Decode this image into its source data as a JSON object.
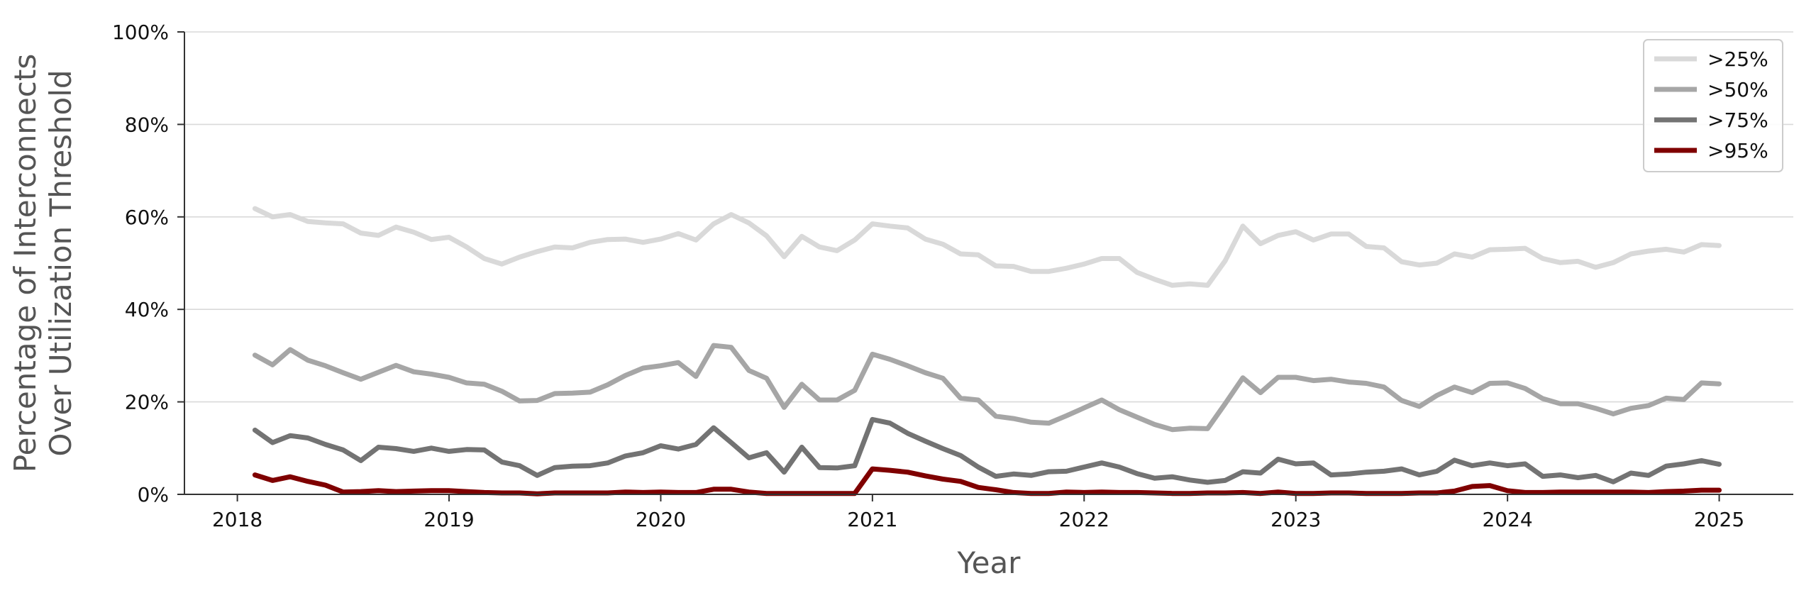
{
  "chart_data": {
    "type": "line",
    "xlabel": "Year",
    "ylabel": "Percentage of Interconnects\nOver Utilization Threshold",
    "xlim": [
      2017.75,
      2025.35
    ],
    "ylim": [
      0,
      100
    ],
    "x_ticks": [
      2018,
      2019,
      2020,
      2021,
      2022,
      2023,
      2024,
      2025
    ],
    "x_tick_labels": [
      "2018",
      "2019",
      "2020",
      "2021",
      "2022",
      "2023",
      "2024",
      "2025"
    ],
    "y_ticks": [
      0,
      20,
      40,
      60,
      80,
      100
    ],
    "y_tick_labels": [
      "0%",
      "20%",
      "40%",
      "60%",
      "80%",
      "100%"
    ],
    "grid": "horizontal",
    "legend_position": "top-right",
    "x_start": 2018.083,
    "x_step": 0.0833333,
    "series": [
      {
        "name": ">25%",
        "color": "#d9d9d9",
        "values": [
          61.8,
          60.0,
          60.5,
          59.0,
          58.7,
          58.5,
          56.5,
          56.0,
          57.8,
          56.7,
          55.1,
          55.6,
          53.5,
          51.0,
          49.8,
          51.3,
          52.5,
          53.5,
          53.3,
          54.5,
          55.1,
          55.2,
          54.5,
          55.2,
          56.4,
          55.0,
          58.5,
          60.5,
          58.7,
          55.9,
          51.4,
          55.8,
          53.5,
          52.7,
          55.0,
          58.5,
          58.0,
          57.6,
          55.2,
          54.1,
          52.0,
          51.8,
          49.4,
          49.3,
          48.2,
          48.2,
          48.9,
          49.8,
          51.0,
          51.0,
          48.0,
          46.5,
          45.2,
          45.5,
          45.2,
          50.5,
          58.0,
          54.2,
          56.0,
          56.8,
          55.0,
          56.3,
          56.3,
          53.6,
          53.3,
          50.3,
          49.6,
          50.0,
          52.0,
          51.3,
          52.9,
          53.0,
          53.2,
          51.0,
          50.1,
          50.4,
          49.1,
          50.1,
          52.0,
          52.6,
          53.0,
          52.4,
          54.0,
          53.8
        ]
      },
      {
        "name": ">50%",
        "color": "#a6a6a6",
        "values": [
          30.1,
          28.0,
          31.3,
          29.0,
          27.8,
          26.3,
          24.9,
          26.4,
          27.9,
          26.5,
          26.0,
          25.3,
          24.1,
          23.8,
          22.3,
          20.2,
          20.3,
          21.8,
          21.9,
          22.1,
          23.7,
          25.7,
          27.3,
          27.8,
          28.5,
          25.5,
          32.2,
          31.8,
          26.8,
          25.1,
          18.8,
          23.8,
          20.4,
          20.4,
          22.5,
          30.3,
          29.2,
          27.8,
          26.3,
          25.1,
          20.8,
          20.4,
          16.9,
          16.4,
          15.6,
          15.4,
          17.0,
          18.7,
          20.4,
          18.3,
          16.7,
          15.1,
          14.0,
          14.3,
          14.2,
          19.6,
          25.2,
          22.0,
          25.3,
          25.3,
          24.6,
          24.9,
          24.3,
          24.0,
          23.2,
          20.3,
          19.0,
          21.4,
          23.2,
          22.0,
          24.0,
          24.1,
          22.9,
          20.7,
          19.6,
          19.6,
          18.6,
          17.4,
          18.6,
          19.2,
          20.8,
          20.5,
          24.1,
          23.9
        ]
      },
      {
        "name": ">75%",
        "color": "#737373",
        "values": [
          13.9,
          11.2,
          12.7,
          12.2,
          10.8,
          9.6,
          7.3,
          10.2,
          9.9,
          9.3,
          10.0,
          9.3,
          9.7,
          9.6,
          7.0,
          6.2,
          4.1,
          5.8,
          6.1,
          6.2,
          6.8,
          8.3,
          9.0,
          10.5,
          9.8,
          10.8,
          14.4,
          11.2,
          7.9,
          9.0,
          4.8,
          10.2,
          5.8,
          5.7,
          6.2,
          16.2,
          15.4,
          13.2,
          11.5,
          9.9,
          8.4,
          5.9,
          3.9,
          4.4,
          4.1,
          4.9,
          5.0,
          5.9,
          6.8,
          5.9,
          4.5,
          3.5,
          3.8,
          3.1,
          2.6,
          3.0,
          4.9,
          4.6,
          7.6,
          6.6,
          6.8,
          4.2,
          4.4,
          4.8,
          5.0,
          5.5,
          4.2,
          5.0,
          7.4,
          6.2,
          6.8,
          6.2,
          6.6,
          3.9,
          4.2,
          3.6,
          4.1,
          2.7,
          4.6,
          4.1,
          6.1,
          6.6,
          7.3,
          6.5
        ]
      },
      {
        "name": ">95%",
        "color": "#7f0000",
        "values": [
          4.2,
          3.0,
          3.8,
          2.8,
          2.0,
          0.5,
          0.6,
          0.8,
          0.6,
          0.7,
          0.8,
          0.8,
          0.6,
          0.4,
          0.3,
          0.3,
          0.1,
          0.3,
          0.3,
          0.3,
          0.3,
          0.5,
          0.4,
          0.5,
          0.4,
          0.4,
          1.1,
          1.1,
          0.5,
          0.2,
          0.2,
          0.2,
          0.2,
          0.2,
          0.2,
          5.5,
          5.2,
          4.8,
          4.0,
          3.3,
          2.8,
          1.5,
          1.0,
          0.4,
          0.2,
          0.2,
          0.5,
          0.4,
          0.5,
          0.4,
          0.4,
          0.3,
          0.2,
          0.2,
          0.3,
          0.3,
          0.4,
          0.2,
          0.5,
          0.2,
          0.2,
          0.3,
          0.3,
          0.2,
          0.2,
          0.2,
          0.3,
          0.3,
          0.7,
          1.7,
          1.9,
          0.8,
          0.4,
          0.4,
          0.5,
          0.5,
          0.5,
          0.5,
          0.5,
          0.4,
          0.6,
          0.7,
          0.9,
          0.9
        ]
      }
    ]
  }
}
